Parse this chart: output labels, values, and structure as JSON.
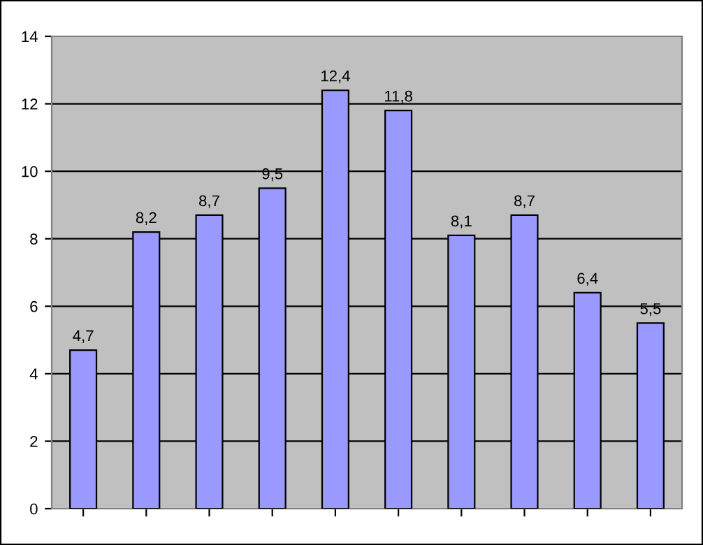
{
  "chart_data": {
    "type": "bar",
    "categories": [
      null,
      null,
      null,
      null,
      null,
      null,
      null,
      null,
      null,
      null
    ],
    "values": [
      4.7,
      8.2,
      8.7,
      9.5,
      12.4,
      11.8,
      8.1,
      8.7,
      6.4,
      5.5
    ],
    "value_labels": [
      "4,7",
      "8,2",
      "8,7",
      "9,5",
      "12,4",
      "11,8",
      "8,1",
      "8,7",
      "6,4",
      "5,5"
    ],
    "color": "#9999ff",
    "ylim": [
      0,
      14
    ],
    "yticks": [
      0,
      2,
      4,
      6,
      8,
      10,
      12,
      14
    ],
    "grid": "y"
  }
}
